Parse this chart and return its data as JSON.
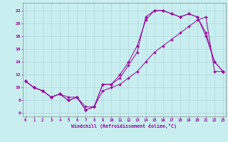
{
  "xlabel": "Windchill (Refroidissement éolien,°C)",
  "bg_color": "#c8eef0",
  "line_color": "#990099",
  "grid_color": "#b0d8dc",
  "x_ticks": [
    0,
    1,
    2,
    3,
    4,
    5,
    6,
    7,
    8,
    9,
    10,
    11,
    12,
    13,
    14,
    15,
    16,
    17,
    18,
    19,
    20,
    21,
    22,
    23
  ],
  "y_ticks": [
    6,
    8,
    10,
    12,
    14,
    16,
    18,
    20,
    22
  ],
  "xlim": [
    -0.3,
    23.3
  ],
  "ylim": [
    5.5,
    23.2
  ],
  "line1_x": [
    0,
    1,
    2,
    3,
    4,
    5,
    6,
    7,
    8,
    9,
    10,
    11,
    12,
    13,
    14,
    15,
    16,
    17,
    18,
    19,
    20,
    21,
    22,
    23
  ],
  "line1_y": [
    11.0,
    10.0,
    9.5,
    8.5,
    9.0,
    8.0,
    8.5,
    6.5,
    7.0,
    10.5,
    10.5,
    11.5,
    13.5,
    15.5,
    21.0,
    22.0,
    22.0,
    21.5,
    21.0,
    21.5,
    21.0,
    18.0,
    14.0,
    12.5
  ],
  "line2_x": [
    0,
    1,
    2,
    3,
    4,
    5,
    6,
    7,
    8,
    9,
    10,
    11,
    12,
    13,
    14,
    15,
    16,
    17,
    18,
    19,
    20,
    21,
    22,
    23
  ],
  "line2_y": [
    11.0,
    10.0,
    9.5,
    8.5,
    9.0,
    8.0,
    8.5,
    6.5,
    7.0,
    10.5,
    10.5,
    12.0,
    14.0,
    16.5,
    20.5,
    22.0,
    22.0,
    21.5,
    21.0,
    21.5,
    21.0,
    18.5,
    14.0,
    12.5
  ],
  "line3_x": [
    0,
    1,
    2,
    3,
    4,
    5,
    6,
    7,
    8,
    9,
    10,
    11,
    12,
    13,
    14,
    15,
    16,
    17,
    18,
    19,
    20,
    21,
    22,
    23
  ],
  "line3_y": [
    11.0,
    10.0,
    9.5,
    8.5,
    9.0,
    8.5,
    8.5,
    7.0,
    7.0,
    9.5,
    10.0,
    10.5,
    11.5,
    12.5,
    14.0,
    15.5,
    16.5,
    17.5,
    18.5,
    19.5,
    20.5,
    21.0,
    12.5,
    12.5
  ]
}
